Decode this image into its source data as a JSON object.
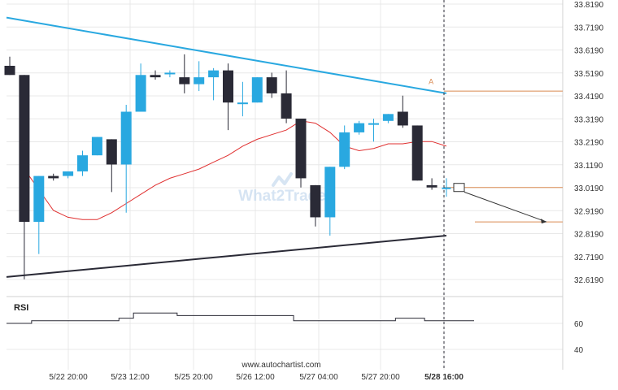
{
  "chart_data": {
    "type": "candlestick",
    "price_axis": {
      "ticks": [
        "33.8190",
        "33.7190",
        "33.6190",
        "33.5190",
        "33.4190",
        "33.3190",
        "33.2190",
        "33.1190",
        "33.0190",
        "32.9190",
        "32.8190",
        "32.7190",
        "32.6190"
      ],
      "range": [
        32.59,
        33.84
      ]
    },
    "time_axis": {
      "ticks": [
        "5/22 20:00",
        "5/23 12:00",
        "5/25 20:00",
        "5/26 12:00",
        "5/27 04:00",
        "5/27 20:00",
        "5/28 16:00"
      ],
      "highlighted_tick": "5/28 16:00"
    },
    "candles": [
      {
        "o": 33.55,
        "h": 33.59,
        "c": 33.51,
        "l": 33.51
      },
      {
        "o": 33.51,
        "h": 33.51,
        "c": 32.87,
        "l": 32.62
      },
      {
        "o": 32.87,
        "h": 33.07,
        "c": 33.07,
        "l": 32.73
      },
      {
        "o": 33.07,
        "h": 33.08,
        "c": 33.06,
        "l": 33.05
      },
      {
        "o": 33.07,
        "h": 33.09,
        "c": 33.09,
        "l": 33.06
      },
      {
        "o": 33.09,
        "h": 33.18,
        "c": 33.16,
        "l": 33.07
      },
      {
        "o": 33.16,
        "h": 33.24,
        "c": 33.24,
        "l": 33.16
      },
      {
        "o": 33.23,
        "h": 33.23,
        "c": 33.12,
        "l": 33.0
      },
      {
        "o": 33.12,
        "h": 33.38,
        "c": 33.35,
        "l": 32.91
      },
      {
        "o": 33.35,
        "h": 33.56,
        "c": 33.51,
        "l": 33.35
      },
      {
        "o": 33.51,
        "h": 33.53,
        "c": 33.5,
        "l": 33.49
      },
      {
        "o": 33.52,
        "h": 33.53,
        "c": 33.52,
        "l": 33.5
      },
      {
        "o": 33.5,
        "h": 33.6,
        "c": 33.47,
        "l": 33.43
      },
      {
        "o": 33.47,
        "h": 33.57,
        "c": 33.5,
        "l": 33.44
      },
      {
        "o": 33.5,
        "h": 33.54,
        "c": 33.53,
        "l": 33.4
      },
      {
        "o": 33.53,
        "h": 33.56,
        "c": 33.39,
        "l": 33.27
      },
      {
        "o": 33.39,
        "h": 33.48,
        "c": 33.39,
        "l": 33.33
      },
      {
        "o": 33.39,
        "h": 33.5,
        "c": 33.5,
        "l": 33.39
      },
      {
        "o": 33.5,
        "h": 33.52,
        "c": 33.43,
        "l": 33.41
      },
      {
        "o": 33.43,
        "h": 33.53,
        "c": 33.32,
        "l": 33.3
      },
      {
        "o": 33.32,
        "h": 33.32,
        "c": 33.06,
        "l": 33.02
      },
      {
        "o": 33.03,
        "h": 33.03,
        "c": 32.89,
        "l": 32.85
      },
      {
        "o": 32.89,
        "h": 33.11,
        "c": 33.11,
        "l": 32.81
      },
      {
        "o": 33.11,
        "h": 33.29,
        "c": 33.26,
        "l": 33.1
      },
      {
        "o": 33.26,
        "h": 33.31,
        "c": 33.3,
        "l": 33.25
      },
      {
        "o": 33.3,
        "h": 33.32,
        "c": 33.3,
        "l": 33.22
      },
      {
        "o": 33.31,
        "h": 33.34,
        "c": 33.34,
        "l": 33.3
      },
      {
        "o": 33.35,
        "h": 33.42,
        "c": 33.29,
        "l": 33.28
      },
      {
        "o": 33.29,
        "h": 33.29,
        "c": 33.05,
        "l": 33.05
      },
      {
        "o": 33.03,
        "h": 33.06,
        "c": 33.02,
        "l": 33.01
      },
      {
        "o": 33.02,
        "h": 33.06,
        "c": 33.02,
        "l": 32.98
      }
    ],
    "moving_average": [
      33.1,
      33.01,
      32.92,
      32.89,
      32.88,
      32.88,
      32.91,
      32.95,
      32.99,
      33.03,
      33.06,
      33.08,
      33.1,
      33.13,
      33.16,
      33.2,
      33.23,
      33.25,
      33.27,
      33.31,
      33.3,
      33.26,
      33.2,
      33.18,
      33.19,
      33.21,
      33.21,
      33.22,
      33.22,
      33.2
    ],
    "trendlines": {
      "resistance": [
        [
          0,
          33.76
        ],
        [
          30,
          33.43
        ]
      ],
      "support": [
        [
          0,
          32.63
        ],
        [
          30,
          32.81
        ]
      ]
    },
    "pattern_label": "A",
    "levels": [
      33.44,
      33.02,
      32.87
    ],
    "rsi": {
      "label": "RSI",
      "ticks": [
        "60",
        "40"
      ],
      "values": [
        60,
        60,
        62,
        62,
        62,
        62,
        62,
        62,
        64,
        68,
        68,
        68,
        66,
        66,
        66,
        66,
        66,
        66,
        66,
        66,
        62,
        62,
        62,
        62,
        62,
        62,
        62,
        64,
        64,
        62,
        62
      ]
    },
    "watermark": "What2Trade",
    "source_text": "www.autochartist.com",
    "colors": {
      "bull": "#29a8e0",
      "bear": "#2a2a36",
      "trendline_upper": "#29a8e0",
      "trendline_lower": "#2a2a36",
      "moving_average": "#e03030",
      "level": "#d98a52",
      "grid": "#e8e8e8",
      "axis_text": "#333333"
    }
  }
}
